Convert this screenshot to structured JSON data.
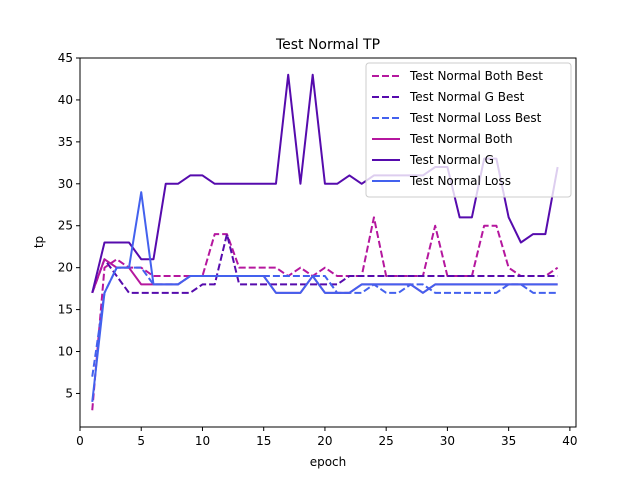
{
  "chart_data": {
    "type": "line",
    "title": "Test Normal TP",
    "xlabel": "epoch",
    "ylabel": "tp",
    "xlim": [
      0,
      40.5
    ],
    "ylim": [
      1,
      45
    ],
    "xticks": [
      0,
      5,
      10,
      15,
      20,
      25,
      30,
      35,
      40
    ],
    "yticks": [
      5,
      10,
      15,
      20,
      25,
      30,
      35,
      40,
      45
    ],
    "grid": false,
    "legend_position": "upper right",
    "x": [
      1,
      2,
      3,
      4,
      5,
      6,
      7,
      8,
      9,
      10,
      11,
      12,
      13,
      14,
      15,
      16,
      17,
      18,
      19,
      20,
      21,
      22,
      23,
      24,
      25,
      26,
      27,
      28,
      29,
      30,
      31,
      32,
      33,
      34,
      35,
      36,
      37,
      38,
      39
    ],
    "series": [
      {
        "name": "Test Normal Both Best",
        "color": "#b5179e",
        "dash": "dashed",
        "values": [
          3,
          20,
          21,
          20,
          20,
          19,
          19,
          19,
          19,
          19,
          24,
          24,
          20,
          20,
          20,
          20,
          19,
          20,
          19,
          20,
          19,
          19,
          19,
          26,
          19,
          19,
          19,
          19,
          25,
          19,
          19,
          19,
          25,
          25,
          20,
          19,
          19,
          19,
          20
        ]
      },
      {
        "name": "Test Normal G Best",
        "color": "#560bad",
        "dash": "dashed",
        "values": [
          17,
          21,
          19,
          17,
          17,
          17,
          17,
          17,
          17,
          18,
          18,
          24,
          18,
          18,
          18,
          18,
          18,
          18,
          18,
          18,
          18,
          19,
          19,
          19,
          19,
          19,
          19,
          19,
          19,
          19,
          19,
          19,
          19,
          19,
          19,
          19,
          19,
          19,
          19
        ]
      },
      {
        "name": "Test Normal Loss Best",
        "color": "#4361ee",
        "dash": "dashed",
        "values": [
          7,
          17,
          20,
          20,
          20,
          18,
          18,
          18,
          19,
          19,
          19,
          19,
          19,
          19,
          19,
          19,
          19,
          19,
          19,
          19,
          17,
          17,
          17,
          18,
          17,
          17,
          18,
          18,
          17,
          17,
          17,
          17,
          17,
          17,
          18,
          18,
          17,
          17,
          17
        ]
      },
      {
        "name": "Test Normal Both",
        "color": "#b5179e",
        "dash": "solid",
        "values": [
          17,
          21,
          20,
          20,
          18,
          18,
          18,
          18,
          19,
          19,
          19,
          19,
          19,
          19,
          19,
          17,
          17,
          17,
          19,
          17,
          17,
          17,
          18,
          18,
          18,
          18,
          18,
          17,
          18,
          18,
          18,
          18,
          18,
          18,
          18,
          18,
          18,
          18,
          18
        ]
      },
      {
        "name": "Test Normal G",
        "color": "#560bad",
        "dash": "solid",
        "values": [
          17,
          23,
          23,
          23,
          21,
          21,
          30,
          30,
          31,
          31,
          30,
          30,
          30,
          30,
          30,
          30,
          43,
          30,
          43,
          30,
          30,
          31,
          30,
          31,
          31,
          31,
          31,
          31,
          32,
          32,
          26,
          26,
          33,
          33,
          26,
          23,
          24,
          24,
          32
        ]
      },
      {
        "name": "Test Normal Loss",
        "color": "#4361ee",
        "dash": "solid",
        "values": [
          4,
          17,
          20,
          20,
          29,
          18,
          18,
          18,
          19,
          19,
          19,
          19,
          19,
          19,
          19,
          17,
          17,
          17,
          19,
          17,
          17,
          17,
          18,
          18,
          18,
          18,
          18,
          17,
          18,
          18,
          18,
          18,
          18,
          18,
          18,
          18,
          18,
          18,
          18
        ]
      }
    ]
  }
}
